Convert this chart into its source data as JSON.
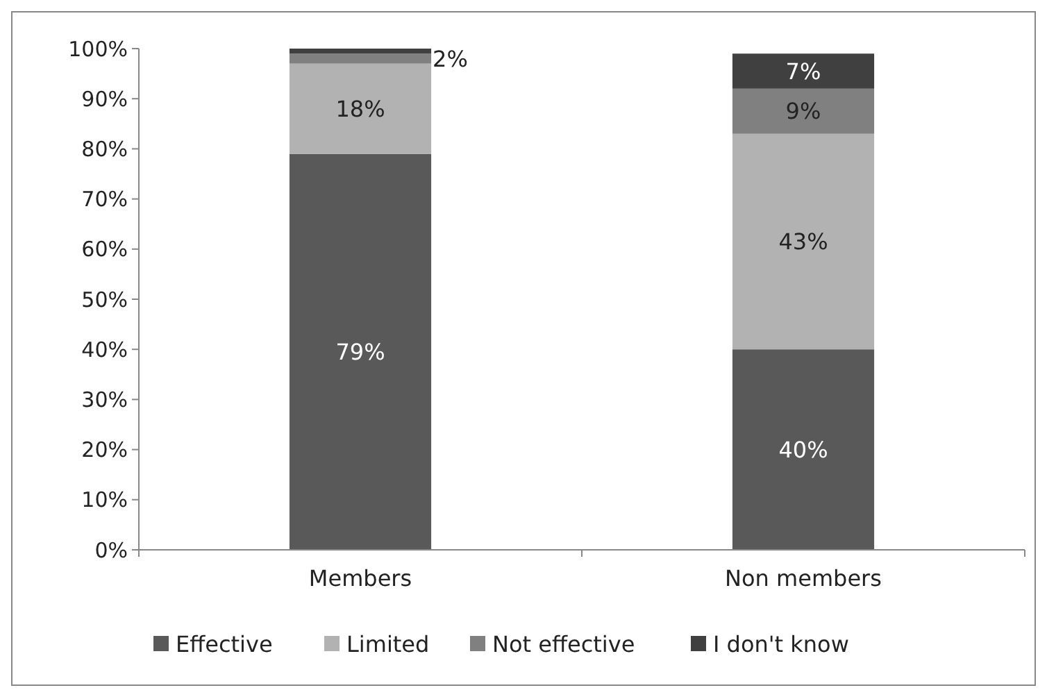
{
  "chart_data": {
    "type": "bar",
    "stacked": true,
    "categories": [
      "Members",
      "Non members"
    ],
    "series": [
      {
        "name": "Effective",
        "color": "#595959",
        "values": [
          79,
          40
        ],
        "value_labels": [
          "79%",
          "40%"
        ]
      },
      {
        "name": "Limited",
        "color": "#b2b2b2",
        "values": [
          18,
          43
        ],
        "value_labels": [
          "18%",
          "43%"
        ]
      },
      {
        "name": "Not effective",
        "color": "#808080",
        "values": [
          2,
          9
        ],
        "value_labels": [
          "2%",
          "9%"
        ]
      },
      {
        "name": "I don't know",
        "color": "#404040",
        "values": [
          1,
          7
        ],
        "value_labels": [
          null,
          "7%"
        ]
      }
    ],
    "ylim": [
      0,
      100
    ],
    "yticks": [
      {
        "value": 0,
        "label": "0%"
      },
      {
        "value": 10,
        "label": "10%"
      },
      {
        "value": 20,
        "label": "20%"
      },
      {
        "value": 30,
        "label": "30%"
      },
      {
        "value": 40,
        "label": "40%"
      },
      {
        "value": 50,
        "label": "50%"
      },
      {
        "value": 60,
        "label": "60%"
      },
      {
        "value": 70,
        "label": "70%"
      },
      {
        "value": 80,
        "label": "80%"
      },
      {
        "value": 90,
        "label": "90%"
      },
      {
        "value": 100,
        "label": "100%"
      }
    ],
    "grid": false,
    "legend": "bottom"
  }
}
